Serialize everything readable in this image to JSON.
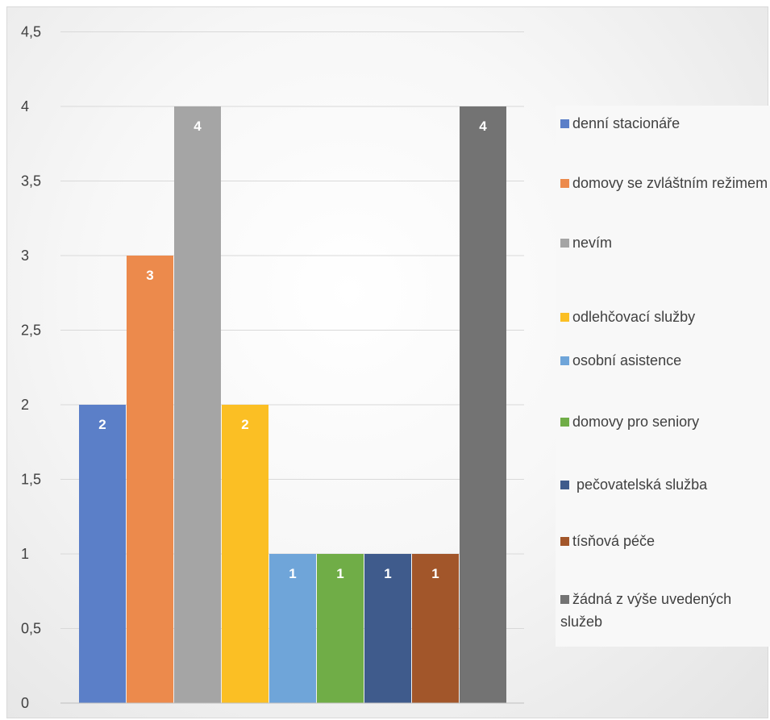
{
  "chart_data": {
    "type": "bar",
    "categories": [
      "denní stacionáře",
      "domovy se zvláštním režimem",
      "nevím",
      "odlehčovací služby",
      "osobní asistence",
      "domovy pro seniory",
      " pečovatelská služba",
      "tísňová péče",
      "žádná z výše uvedených služeb"
    ],
    "values": [
      2,
      3,
      4,
      2,
      1,
      1,
      1,
      1,
      4
    ],
    "data_labels": [
      "2",
      "3",
      "4",
      "2",
      "1",
      "1",
      "1",
      "1",
      "4"
    ],
    "colors": [
      "#5b7fc8",
      "#ec8a4c",
      "#a5a5a5",
      "#fbbf24",
      "#6fa5d9",
      "#70ad47",
      "#3f5b8c",
      "#a2562a",
      "#737373"
    ],
    "y_ticks": [
      "0",
      "0,5",
      "1",
      "1,5",
      "2",
      "2,5",
      "3",
      "3,5",
      "4",
      "4,5"
    ],
    "ylim": [
      0,
      4.5
    ],
    "grid": true,
    "legend_position": "right",
    "title": "",
    "xlabel": "",
    "ylabel": ""
  },
  "legend": {
    "items": [
      {
        "label": "denní stacionáře",
        "color": "#5b7fc8"
      },
      {
        "label": "domovy se zvláštním režimem",
        "color": "#ec8a4c"
      },
      {
        "label": "nevím",
        "color": "#a5a5a5"
      },
      {
        "label": "odlehčovací služby",
        "color": "#fbbf24"
      },
      {
        "label": "osobní asistence",
        "color": "#6fa5d9"
      },
      {
        "label": "domovy pro seniory",
        "color": "#70ad47"
      },
      {
        "label": " pečovatelská služba",
        "color": "#3f5b8c"
      },
      {
        "label": "tísňová péče",
        "color": "#a2562a"
      },
      {
        "label": "žádná z výše uvedených služeb",
        "color": "#737373"
      }
    ]
  }
}
